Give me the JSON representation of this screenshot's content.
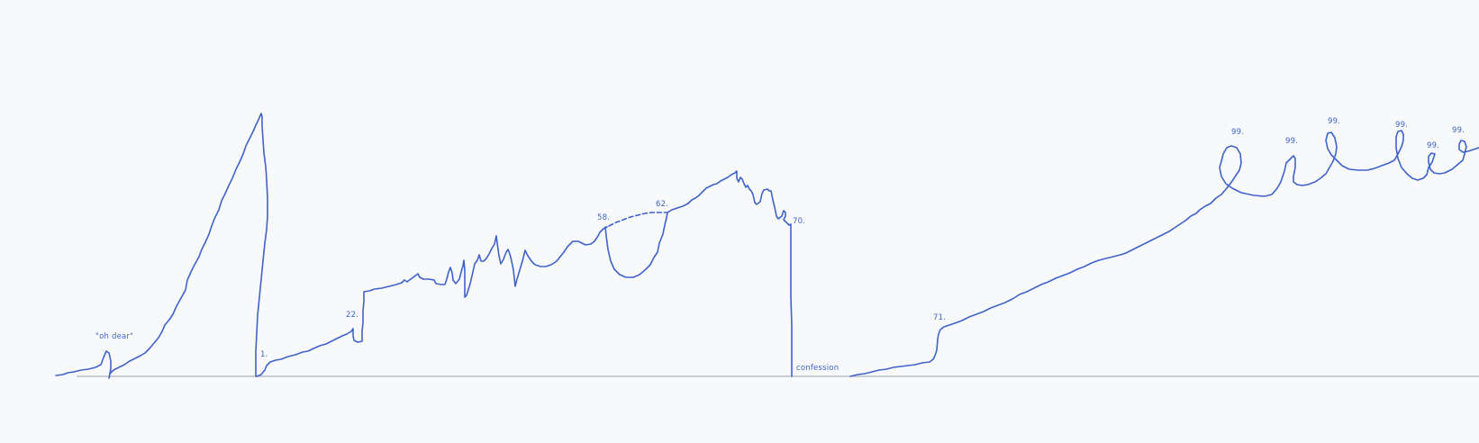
{
  "colors": {
    "ink": "#3f63c9",
    "baseline": "#9aa0a8",
    "background": "#f8f9fb"
  },
  "annotations": {
    "oh_dear": "\"oh dear\"",
    "one": "1.",
    "twenty_two": "22.",
    "fifty_eight": "58.",
    "sixty_two": "62.",
    "seventy": "70.",
    "confession": "confession",
    "seventy_one": "71.",
    "loop_a": "99.",
    "loop_b": "99.",
    "loop_c": "99.",
    "loop_d": "99.",
    "loop_e": "99.",
    "loop_f": "99."
  }
}
